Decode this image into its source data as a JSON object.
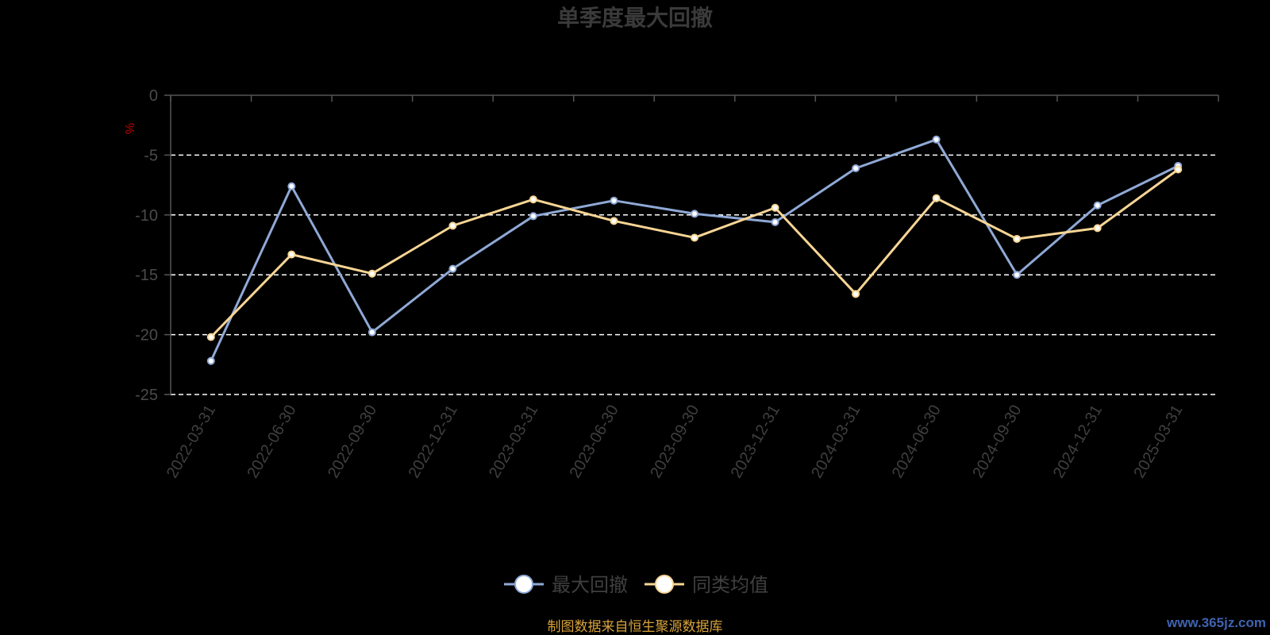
{
  "chart_data": {
    "type": "line",
    "title": "单季度最大回撤",
    "ylabel": "%",
    "ylim": [
      -25,
      0
    ],
    "yticks": [
      0,
      -5,
      -10,
      -15,
      -20,
      -25
    ],
    "grid": true,
    "legend_position": "bottom-center",
    "categories": [
      "2022-03-31",
      "2022-06-30",
      "2022-09-30",
      "2022-12-31",
      "2023-03-31",
      "2023-06-30",
      "2023-09-30",
      "2023-12-31",
      "2024-03-31",
      "2024-06-30",
      "2024-09-30",
      "2024-12-31",
      "2025-03-31"
    ],
    "series": [
      {
        "name": "最大回撤",
        "color": "#8fa9d6",
        "values": [
          -22.2,
          -7.6,
          -19.8,
          -14.5,
          -10.1,
          -8.8,
          -9.9,
          -10.6,
          -6.1,
          -3.7,
          -15.0,
          -9.2,
          -5.9
        ]
      },
      {
        "name": "同类均值",
        "color": "#f7d594",
        "values": [
          -20.2,
          -13.3,
          -14.9,
          -10.9,
          -8.7,
          -10.5,
          -11.9,
          -9.4,
          -16.6,
          -8.6,
          -12.0,
          -11.1,
          -6.2
        ]
      }
    ]
  },
  "footer": {
    "source": "制图数据来自恒生聚源数据库",
    "watermark": "www.365jz.com"
  }
}
